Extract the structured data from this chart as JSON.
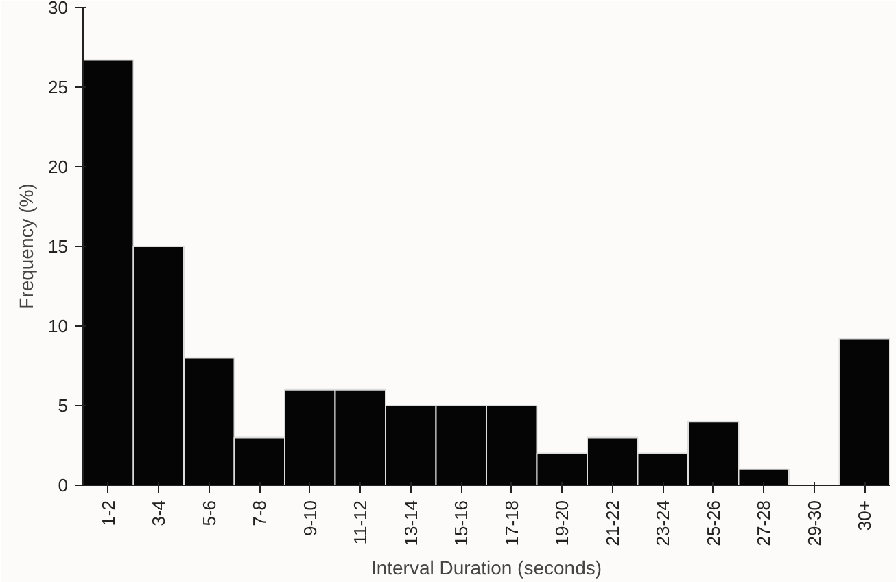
{
  "chart_data": {
    "type": "bar",
    "xlabel": "Interval Duration (seconds)",
    "ylabel": "Frequency (%)",
    "categories": [
      "1-2",
      "3-4",
      "5-6",
      "7-8",
      "9-10",
      "11-12",
      "13-14",
      "15-16",
      "17-18",
      "19-20",
      "21-22",
      "23-24",
      "25-26",
      "27-28",
      "29-30",
      "30+"
    ],
    "values": [
      26.7,
      15,
      8,
      3,
      6,
      6,
      5,
      5,
      5,
      2,
      3,
      2,
      4,
      1,
      0,
      9.2
    ],
    "color": "#050505",
    "ylim": [
      0,
      30
    ],
    "yticks": [
      0,
      5,
      10,
      15,
      20,
      25,
      30
    ],
    "grid": false
  }
}
